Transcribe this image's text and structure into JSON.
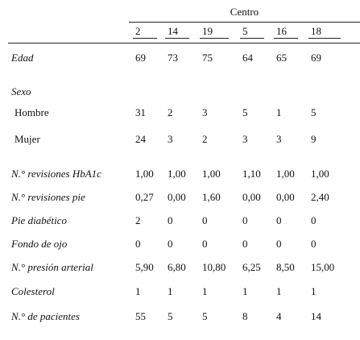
{
  "table": {
    "group_header": "Centro",
    "centers": [
      "2",
      "14",
      "19",
      "5",
      "16",
      "18"
    ],
    "rows": [
      {
        "label": "Edad",
        "style": "italic",
        "values": [
          "69",
          "73",
          "75",
          "64",
          "65",
          "69"
        ]
      },
      {
        "label": "Sexo",
        "style": "italic",
        "values": []
      },
      {
        "label": "Hombre",
        "style": "sub",
        "values": [
          "31",
          "2",
          "3",
          "5",
          "1",
          "5"
        ]
      },
      {
        "label": "Mujer",
        "style": "sub",
        "values": [
          "24",
          "3",
          "2",
          "3",
          "3",
          "9"
        ]
      },
      {
        "label": "N.° revisiones HbA1c",
        "style": "italic",
        "values": [
          "1,00",
          "1,00",
          "1,00",
          "1,10",
          "1,00",
          "1,00"
        ]
      },
      {
        "label": "N.° revisiones pie",
        "style": "italic",
        "values": [
          "0,27",
          "0,00",
          "1,60",
          "0,00",
          "0,00",
          "2,40"
        ]
      },
      {
        "label": "Pie diabético",
        "style": "italic",
        "values": [
          "2",
          "0",
          "0",
          "0",
          "0",
          "0"
        ]
      },
      {
        "label": "Fondo de ojo",
        "style": "italic",
        "values": [
          "0",
          "0",
          "0",
          "0",
          "0",
          "0"
        ]
      },
      {
        "label": "N.° presión arterial",
        "style": "italic",
        "values": [
          "5,90",
          "6,80",
          "10,80",
          "6,25",
          "8,50",
          "15,00"
        ]
      },
      {
        "label": "Colesterol",
        "style": "italic",
        "values": [
          "1",
          "1",
          "1",
          "1",
          "1",
          "1"
        ]
      },
      {
        "label": "N.° de pacientes",
        "style": "italic",
        "values": [
          "55",
          "5",
          "5",
          "8",
          "4",
          "14"
        ]
      }
    ]
  }
}
